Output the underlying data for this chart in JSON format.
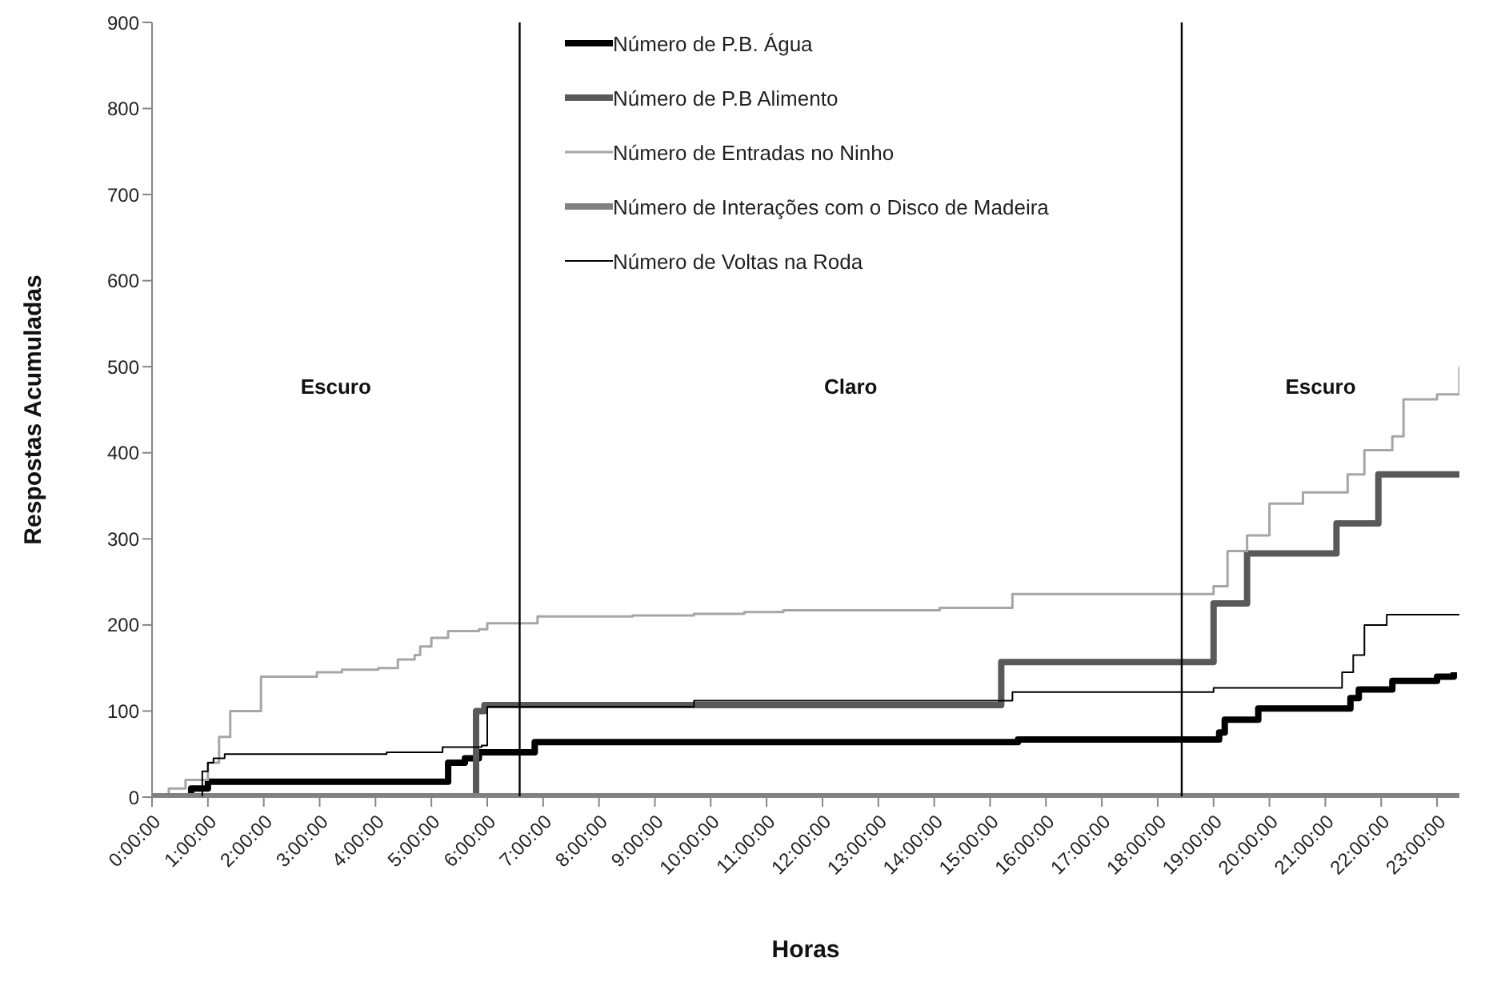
{
  "chart_data": {
    "type": "step",
    "xlabel": "Horas",
    "ylabel": "Respostas Acumuladas",
    "xlim": [
      0,
      23.4
    ],
    "ylim": [
      0,
      900
    ],
    "xticks": [
      {
        "value": 0,
        "label": "0:00:00"
      },
      {
        "value": 1,
        "label": "1:00:00"
      },
      {
        "value": 2,
        "label": "2:00:00"
      },
      {
        "value": 3,
        "label": "3:00:00"
      },
      {
        "value": 4,
        "label": "4:00:00"
      },
      {
        "value": 5,
        "label": "5:00:00"
      },
      {
        "value": 6,
        "label": "6:00:00"
      },
      {
        "value": 7,
        "label": "7:00:00"
      },
      {
        "value": 8,
        "label": "8:00:00"
      },
      {
        "value": 9,
        "label": "9:00:00"
      },
      {
        "value": 10,
        "label": "10:00:00"
      },
      {
        "value": 11,
        "label": "11:00:00"
      },
      {
        "value": 12,
        "label": "12:00:00"
      },
      {
        "value": 13,
        "label": "13:00:00"
      },
      {
        "value": 14,
        "label": "14:00:00"
      },
      {
        "value": 15,
        "label": "15:00:00"
      },
      {
        "value": 16,
        "label": "16:00:00"
      },
      {
        "value": 17,
        "label": "17:00:00"
      },
      {
        "value": 18,
        "label": "18:00:00"
      },
      {
        "value": 19,
        "label": "19:00:00"
      },
      {
        "value": 20,
        "label": "20:00:00"
      },
      {
        "value": 21,
        "label": "21:00:00"
      },
      {
        "value": 22,
        "label": "22:00:00"
      },
      {
        "value": 23,
        "label": "23:00:00"
      }
    ],
    "yticks": [
      0,
      100,
      200,
      300,
      400,
      500,
      600,
      700,
      800,
      900
    ],
    "grid": false,
    "legend": "top",
    "series": [
      {
        "name": "Número de P.B. Água",
        "color": "#000000",
        "x": [
          0,
          0.7,
          1.0,
          5.15,
          5.3,
          5.6,
          5.85,
          6.85,
          15.5,
          18.95,
          19.1,
          19.2,
          19.8,
          21.3,
          21.45,
          21.6,
          22.2,
          23.0,
          23.3
        ],
        "values": [
          0,
          10,
          18,
          18,
          40,
          45,
          52,
          64,
          67,
          67,
          75,
          90,
          103,
          103,
          115,
          125,
          135,
          140,
          145
        ]
      },
      {
        "name": "Número de P.B Alimento",
        "color": "#595959",
        "x": [
          0,
          5.8,
          5.95,
          15.2,
          19.0,
          19.6,
          21.2,
          21.95,
          23.4
        ],
        "values": [
          0,
          100,
          107,
          157,
          225,
          283,
          318,
          375,
          375
        ]
      },
      {
        "name": "Número de Entradas no Ninho",
        "color": "#a6a6a6",
        "x": [
          0,
          0.3,
          0.6,
          1.0,
          1.2,
          1.4,
          1.7,
          1.95,
          2.95,
          3.4,
          4.05,
          4.4,
          4.7,
          4.8,
          5.0,
          5.3,
          5.85,
          6.0,
          6.9,
          8.6,
          9.7,
          10.6,
          11.3,
          14.1,
          15.4,
          19.0,
          19.25,
          19.6,
          20.0,
          20.6,
          21.4,
          21.7,
          22.2,
          22.4,
          23.0,
          23.4
        ],
        "values": [
          0,
          10,
          20,
          40,
          70,
          100,
          100,
          140,
          145,
          148,
          150,
          160,
          165,
          175,
          185,
          193,
          195,
          202,
          210,
          211,
          213,
          215,
          217,
          220,
          236,
          245,
          286,
          304,
          341,
          354,
          375,
          403,
          419,
          462,
          468,
          500
        ]
      },
      {
        "name": "Número de Interações com o Disco de Madeira",
        "color": "#808080",
        "x": [
          0,
          23.4
        ],
        "values": [
          0,
          0
        ]
      },
      {
        "name": "Número de Voltas na Roda",
        "color": "#000000",
        "x": [
          0,
          0.9,
          1.0,
          1.1,
          1.3,
          4.2,
          5.2,
          5.9,
          6.0,
          9.7,
          15.4,
          19.0,
          21.3,
          21.5,
          21.7,
          22.1,
          23.4
        ],
        "values": [
          0,
          30,
          40,
          45,
          50,
          52,
          58,
          60,
          105,
          112,
          122,
          127,
          145,
          165,
          200,
          212,
          212
        ]
      }
    ],
    "ref_lines": [
      {
        "axis": "x",
        "value": 6.58,
        "color": "#000000"
      },
      {
        "axis": "x",
        "value": 18.43,
        "color": "#000000"
      }
    ],
    "annotations": [
      "Escuro",
      "Claro",
      "Escuro"
    ]
  }
}
